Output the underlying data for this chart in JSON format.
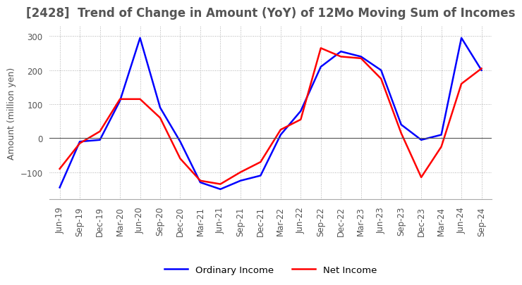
{
  "title": "[2428]  Trend of Change in Amount (YoY) of 12Mo Moving Sum of Incomes",
  "ylabel": "Amount (million yen)",
  "ylim": [
    -180,
    330
  ],
  "yticks": [
    -100,
    0,
    100,
    200,
    300
  ],
  "x_labels": [
    "Jun-19",
    "Sep-19",
    "Dec-19",
    "Mar-20",
    "Jun-20",
    "Sep-20",
    "Dec-20",
    "Mar-21",
    "Jun-21",
    "Sep-21",
    "Dec-21",
    "Mar-22",
    "Jun-22",
    "Sep-22",
    "Dec-22",
    "Mar-23",
    "Jun-23",
    "Sep-23",
    "Dec-23",
    "Mar-24",
    "Jun-24",
    "Sep-24"
  ],
  "ordinary_income": [
    -145,
    -10,
    -5,
    110,
    295,
    90,
    -10,
    -130,
    -150,
    -125,
    -110,
    10,
    80,
    210,
    255,
    240,
    200,
    40,
    -5,
    10,
    295,
    200
  ],
  "net_income": [
    -90,
    -15,
    20,
    115,
    115,
    60,
    -60,
    -125,
    -135,
    -100,
    -70,
    25,
    55,
    265,
    240,
    235,
    175,
    15,
    -115,
    -25,
    160,
    205
  ],
  "ordinary_color": "#0000ff",
  "net_color": "#ff0000",
  "grid_color": "#b0b0b0",
  "background_color": "#ffffff",
  "title_fontsize": 12,
  "label_fontsize": 9,
  "tick_fontsize": 8.5
}
